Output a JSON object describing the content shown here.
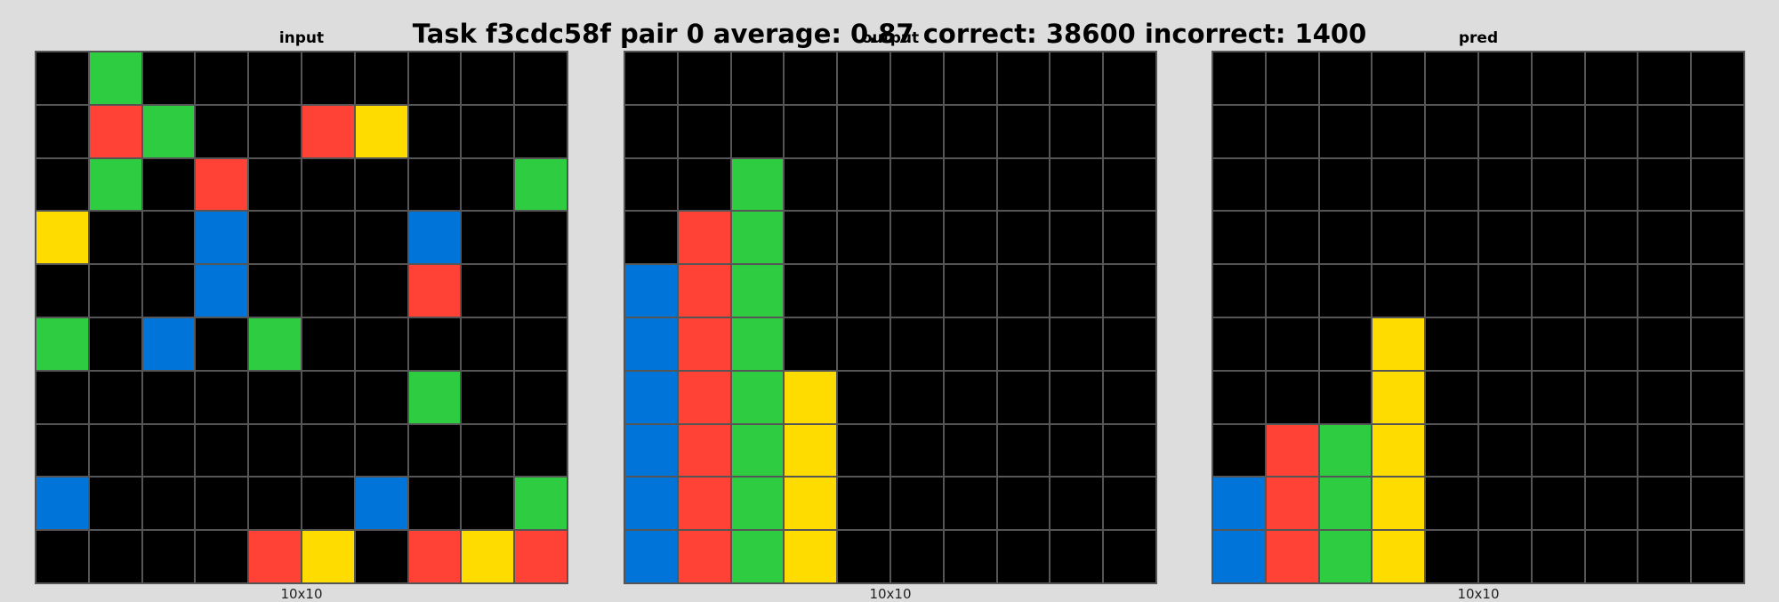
{
  "title": "Task f3cdc58f pair 0 average: 0.87 correct: 38600 incorrect: 1400",
  "palette": {
    "0": "#000000",
    "1": "#0074d9",
    "2": "#ff4136",
    "3": "#2ecc40",
    "4": "#ffdc00"
  },
  "panels": [
    {
      "title": "input",
      "size_label": "10x10",
      "grid": [
        [
          0,
          3,
          0,
          0,
          0,
          0,
          0,
          0,
          0,
          0
        ],
        [
          0,
          2,
          3,
          0,
          0,
          2,
          4,
          0,
          0,
          0
        ],
        [
          0,
          3,
          0,
          2,
          0,
          0,
          0,
          0,
          0,
          3
        ],
        [
          4,
          0,
          0,
          1,
          0,
          0,
          0,
          1,
          0,
          0
        ],
        [
          0,
          0,
          0,
          1,
          0,
          0,
          0,
          2,
          0,
          0
        ],
        [
          3,
          0,
          1,
          0,
          3,
          0,
          0,
          0,
          0,
          0
        ],
        [
          0,
          0,
          0,
          0,
          0,
          0,
          0,
          3,
          0,
          0
        ],
        [
          0,
          0,
          0,
          0,
          0,
          0,
          0,
          0,
          0,
          0
        ],
        [
          1,
          0,
          0,
          0,
          0,
          0,
          1,
          0,
          0,
          3
        ],
        [
          0,
          0,
          0,
          0,
          2,
          4,
          0,
          2,
          4,
          2
        ]
      ]
    },
    {
      "title": "output",
      "size_label": "10x10",
      "grid": [
        [
          0,
          0,
          0,
          0,
          0,
          0,
          0,
          0,
          0,
          0
        ],
        [
          0,
          0,
          0,
          0,
          0,
          0,
          0,
          0,
          0,
          0
        ],
        [
          0,
          0,
          3,
          0,
          0,
          0,
          0,
          0,
          0,
          0
        ],
        [
          0,
          2,
          3,
          0,
          0,
          0,
          0,
          0,
          0,
          0
        ],
        [
          1,
          2,
          3,
          0,
          0,
          0,
          0,
          0,
          0,
          0
        ],
        [
          1,
          2,
          3,
          0,
          0,
          0,
          0,
          0,
          0,
          0
        ],
        [
          1,
          2,
          3,
          4,
          0,
          0,
          0,
          0,
          0,
          0
        ],
        [
          1,
          2,
          3,
          4,
          0,
          0,
          0,
          0,
          0,
          0
        ],
        [
          1,
          2,
          3,
          4,
          0,
          0,
          0,
          0,
          0,
          0
        ],
        [
          1,
          2,
          3,
          4,
          0,
          0,
          0,
          0,
          0,
          0
        ]
      ]
    },
    {
      "title": "pred",
      "size_label": "10x10",
      "grid": [
        [
          0,
          0,
          0,
          0,
          0,
          0,
          0,
          0,
          0,
          0
        ],
        [
          0,
          0,
          0,
          0,
          0,
          0,
          0,
          0,
          0,
          0
        ],
        [
          0,
          0,
          0,
          0,
          0,
          0,
          0,
          0,
          0,
          0
        ],
        [
          0,
          0,
          0,
          0,
          0,
          0,
          0,
          0,
          0,
          0
        ],
        [
          0,
          0,
          0,
          0,
          0,
          0,
          0,
          0,
          0,
          0
        ],
        [
          0,
          0,
          0,
          4,
          0,
          0,
          0,
          0,
          0,
          0
        ],
        [
          0,
          0,
          0,
          4,
          0,
          0,
          0,
          0,
          0,
          0
        ],
        [
          0,
          2,
          3,
          4,
          0,
          0,
          0,
          0,
          0,
          0
        ],
        [
          1,
          2,
          3,
          4,
          0,
          0,
          0,
          0,
          0,
          0
        ],
        [
          1,
          2,
          3,
          4,
          0,
          0,
          0,
          0,
          0,
          0
        ]
      ]
    }
  ]
}
